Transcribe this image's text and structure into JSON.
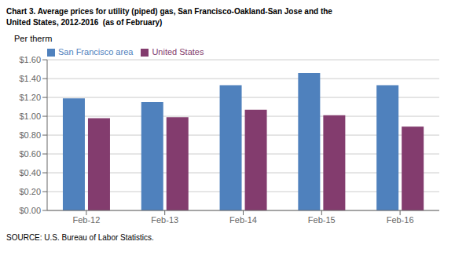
{
  "chart_data": {
    "type": "bar",
    "title": "Chart 3. Average prices for utility (piped) gas, San Francisco-Oakland-San Jose and the\nUnited States, 2012-2016  (as of February)",
    "y_label": "Per therm",
    "annotations": [
      "SOURCE: U.S. Bureau of Labor Statistics."
    ],
    "categories": [
      "Feb-12",
      "Feb-13",
      "Feb-14",
      "Feb-15",
      "Feb-16"
    ],
    "series": [
      {
        "name": "San Francisco area",
        "color": "#4F81BD",
        "values": [
          1.19,
          1.15,
          1.33,
          1.46,
          1.33
        ]
      },
      {
        "name": "United States",
        "color": "#833C6E",
        "values": [
          0.98,
          0.99,
          1.07,
          1.01,
          0.89
        ]
      }
    ],
    "ylim": [
      0.0,
      1.6
    ],
    "yticks": [
      {
        "value": 0.0,
        "label": "$0.00"
      },
      {
        "value": 0.2,
        "label": "$0.20"
      },
      {
        "value": 0.4,
        "label": "$0.40"
      },
      {
        "value": 0.6,
        "label": "$0.60"
      },
      {
        "value": 0.8,
        "label": "$0.80"
      },
      {
        "value": 1.0,
        "label": "$1.00"
      },
      {
        "value": 1.2,
        "label": "$1.20"
      },
      {
        "value": 1.4,
        "label": "$1.40"
      },
      {
        "value": 1.6,
        "label": "$1.60"
      }
    ],
    "grid": true,
    "legend": "upper left"
  }
}
